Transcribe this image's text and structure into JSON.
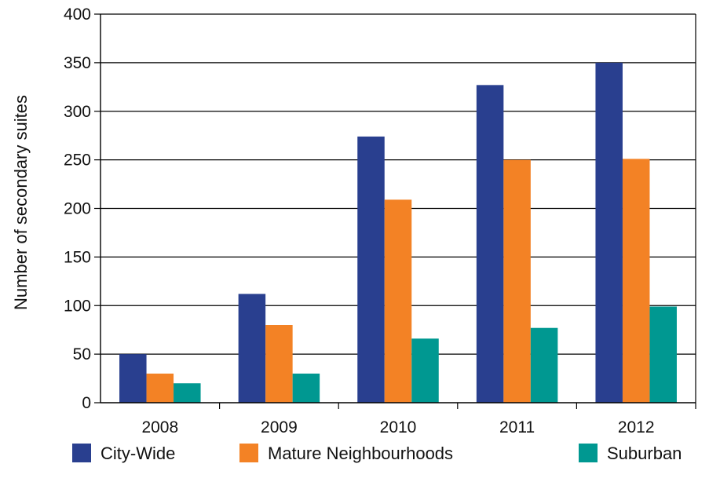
{
  "chart_data": {
    "type": "bar",
    "title": "",
    "xlabel": "",
    "ylabel": "Number of secondary suites",
    "categories": [
      "2008",
      "2009",
      "2010",
      "2011",
      "2012"
    ],
    "ylim": [
      0,
      400
    ],
    "yticks": [
      "0",
      "50",
      "100",
      "150",
      "200",
      "250",
      "300",
      "350",
      "400"
    ],
    "grid": true,
    "legend_position": "bottom",
    "series": [
      {
        "name": "City-Wide",
        "color": "#293f8f",
        "values": [
          50,
          112,
          274,
          327,
          350
        ]
      },
      {
        "name": "Mature Neighbourhoods",
        "color": "#f38225",
        "values": [
          30,
          80,
          209,
          250,
          251
        ]
      },
      {
        "name": "Suburban",
        "color": "#009891",
        "values": [
          20,
          30,
          66,
          77,
          99
        ]
      }
    ]
  }
}
